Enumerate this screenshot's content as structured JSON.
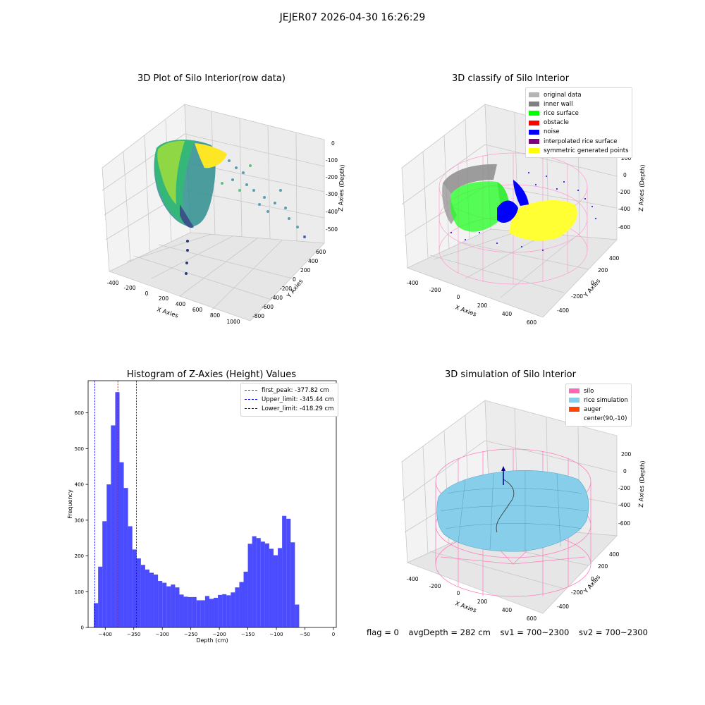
{
  "figure": {
    "suptitle": "JEJER07 2026-04-30 16:26:29"
  },
  "panels": {
    "raw": {
      "title": "3D Plot of Silo Interior(row data)",
      "xlabel": "X Axies",
      "ylabel": "Y Axies",
      "zlabel": "Z Axies (Depth)",
      "x_ticks": [
        "-400",
        "-200",
        "0",
        "200",
        "400",
        "600",
        "800",
        "1000"
      ],
      "y_ticks": [
        "600",
        "400",
        "200",
        "0",
        "-200",
        "-400",
        "-600",
        "-800"
      ],
      "z_ticks": [
        "0",
        "-100",
        "-200",
        "-300",
        "-400",
        "-500"
      ]
    },
    "classify": {
      "title": "3D classify of Silo Interior",
      "xlabel": "X Axies",
      "ylabel": "Y Axies",
      "zlabel": "Z Axies (Depth)",
      "x_ticks": [
        "-400",
        "-200",
        "0",
        "200",
        "400",
        "600"
      ],
      "y_ticks": [
        "400",
        "200",
        "0",
        "-200",
        "-400"
      ],
      "z_ticks": [
        "200",
        "0",
        "-200",
        "-400",
        "-600"
      ],
      "legend": [
        {
          "label": "original data",
          "color": "#b4b4b4"
        },
        {
          "label": "inner wall",
          "color": "#808080"
        },
        {
          "label": "rice surface",
          "color": "#00ff00"
        },
        {
          "label": "obstacle",
          "color": "#ff0000"
        },
        {
          "label": "noise",
          "color": "#0000ff"
        },
        {
          "label": "interpolated rice surface",
          "color": "#800080"
        },
        {
          "label": "symmetric generated points",
          "color": "#ffff00"
        }
      ]
    },
    "histogram": {
      "title": "Histogram of Z-Axies (Height) Values",
      "xlabel": "Depth (cm)",
      "ylabel": "Frequency",
      "legend": [
        {
          "label": "first_peak: -377.82 cm",
          "color": "#ff0000"
        },
        {
          "label": "Upper_limit: -345.44 cm",
          "color": "#0000ff"
        },
        {
          "label": "Lower_limit: -418.29 cm",
          "color": "#0000ff"
        }
      ]
    },
    "simulation": {
      "title": "3D simulation of Silo Interior",
      "xlabel": "X Axies",
      "ylabel": "Y Axies",
      "zlabel": "Z Axies (Depth)",
      "x_ticks": [
        "-400",
        "-200",
        "0",
        "200",
        "400",
        "600"
      ],
      "y_ticks": [
        "400",
        "200",
        "0",
        "-200",
        "-400"
      ],
      "z_ticks": [
        "200",
        "0",
        "-200",
        "-400",
        "-600"
      ],
      "legend": [
        {
          "label": "silo",
          "color": "#ff69b4"
        },
        {
          "label": "rice simulation",
          "color": "#87ceeb"
        },
        {
          "label": "auger",
          "color": "#ff4500"
        },
        {
          "label": "center(90,-10)",
          "color": ""
        }
      ]
    }
  },
  "footer": {
    "flag": "flag = 0",
    "avg_depth": "avgDepth = 282 cm",
    "sv1": "sv1 = 700~2300",
    "sv2": "sv2 = 700~2300"
  },
  "chart_data": [
    {
      "type": "bar",
      "title": "Histogram of Z-Axies (Height) Values",
      "xlabel": "Depth (cm)",
      "ylabel": "Frequency",
      "xlim": [
        -430,
        5
      ],
      "ylim": [
        0,
        690
      ],
      "x_ticks": [
        -400,
        -350,
        -300,
        -250,
        -200,
        -150,
        -100,
        -50,
        0
      ],
      "y_ticks": [
        0,
        100,
        200,
        300,
        400,
        500,
        600
      ],
      "bin_start": -420,
      "bin_width": 7.5,
      "values": [
        68,
        170,
        297,
        400,
        565,
        658,
        462,
        390,
        283,
        218,
        193,
        175,
        162,
        153,
        148,
        130,
        125,
        115,
        120,
        112,
        92,
        86,
        85,
        85,
        76,
        76,
        88,
        80,
        83,
        91,
        93,
        90,
        98,
        112,
        127,
        156,
        234,
        255,
        250,
        240,
        235,
        220,
        202,
        222,
        312,
        304,
        238,
        64
      ],
      "color": "#0000ff",
      "vlines": [
        {
          "name": "first_peak: -377.82 cm",
          "x": -377.82,
          "color": "#ff0000"
        },
        {
          "name": "Upper_limit: -345.44 cm",
          "x": -345.44,
          "color": "#0000ff"
        },
        {
          "name": "Lower_limit: -418.29 cm",
          "x": -418.29,
          "color": "#0000ff"
        }
      ]
    }
  ]
}
